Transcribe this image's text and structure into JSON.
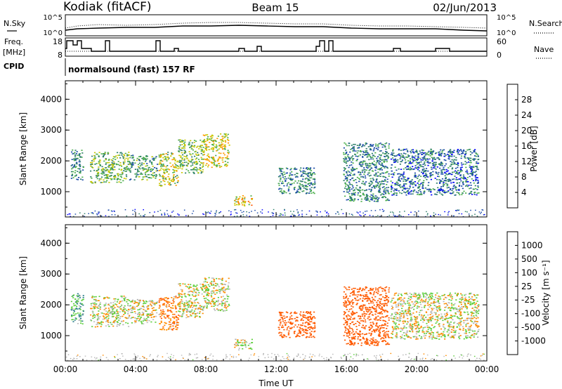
{
  "header": {
    "station": "Kodiak (fitACF)",
    "beam": "Beam 15",
    "date": "02/Jun/2013"
  },
  "panels": {
    "nsky": {
      "left_label": "N.Sky",
      "right_label": "N.Search",
      "tick_top": "10^5",
      "tick_bottom": "10^0"
    },
    "freq": {
      "left_label_1": "Freq.",
      "left_label_2": "[MHz]",
      "left_ticks": [
        "18",
        "8"
      ],
      "right_label": "Nave",
      "right_ticks": [
        "60",
        "0"
      ]
    },
    "cpid": {
      "label": "CPID",
      "mode": "normalsound (fast) 157 RF"
    }
  },
  "colors": {
    "power_scale": [
      "#0000ff",
      "#1a4aa8",
      "#2f7f6a",
      "#4caf4c",
      "#c8c800",
      "#ff9900",
      "#ff5500",
      "#ee0000"
    ],
    "velocity_scale": [
      "#2b3fb8",
      "#2e7f8c",
      "#2e8b57",
      "#5fcf3f",
      "#bfbfbf",
      "#b0b0b0",
      "#ff8c00",
      "#ff5a00",
      "#e00000"
    ]
  },
  "chart_data": [
    {
      "type": "heatmap",
      "quantity": "Power",
      "ylabel": "Slant Range [km]",
      "yticks": [
        "1000",
        "2000",
        "3000",
        "4000"
      ],
      "ylim": [
        180,
        4600
      ],
      "xlim": [
        0,
        24
      ],
      "colorbar": {
        "label": "Power [dB]",
        "ticks": [
          "4",
          "8",
          "12",
          "16",
          "20",
          "24",
          "28"
        ],
        "range": [
          0,
          32
        ]
      },
      "echo_regions": [
        {
          "t_start": 0.3,
          "t_end": 1.0,
          "r_min": 1400,
          "r_max": 2400,
          "power_db": 10
        },
        {
          "t_start": 1.4,
          "t_end": 3.6,
          "r_min": 1300,
          "r_max": 2300,
          "power_db": 14
        },
        {
          "t_start": 3.6,
          "t_end": 5.2,
          "r_min": 1400,
          "r_max": 2200,
          "power_db": 12
        },
        {
          "t_start": 5.3,
          "t_end": 6.4,
          "r_min": 1200,
          "r_max": 2300,
          "power_db": 16
        },
        {
          "t_start": 6.4,
          "t_end": 7.8,
          "r_min": 1600,
          "r_max": 2700,
          "power_db": 14
        },
        {
          "t_start": 7.8,
          "t_end": 9.3,
          "r_min": 1800,
          "r_max": 2900,
          "power_db": 18
        },
        {
          "t_start": 9.6,
          "t_end": 10.6,
          "r_min": 550,
          "r_max": 900,
          "power_db": 20
        },
        {
          "t_start": 12.1,
          "t_end": 14.2,
          "r_min": 950,
          "r_max": 1800,
          "power_db": 10
        },
        {
          "t_start": 15.8,
          "t_end": 18.4,
          "r_min": 700,
          "r_max": 2600,
          "power_db": 10
        },
        {
          "t_start": 18.5,
          "t_end": 23.5,
          "r_min": 900,
          "r_max": 2400,
          "power_db": 8
        }
      ]
    },
    {
      "type": "heatmap",
      "quantity": "Velocity",
      "ylabel": "Slant Range [km]",
      "xlabel": "Time UT",
      "yticks": [
        "1000",
        "2000",
        "3000",
        "4000"
      ],
      "ylim": [
        180,
        4600
      ],
      "xlim": [
        0,
        24
      ],
      "xticks": [
        "00:00",
        "04:00",
        "08:00",
        "12:00",
        "16:00",
        "20:00",
        "00:00"
      ],
      "colorbar": {
        "label": "Velocity [m s⁻¹]",
        "ticks": [
          "1000",
          "500",
          "100",
          "25",
          "-25",
          "-100",
          "-500",
          "-1000"
        ]
      },
      "echo_regions": [
        {
          "t_start": 0.3,
          "t_end": 1.0,
          "r_min": 1400,
          "r_max": 2400,
          "velocity": 100
        },
        {
          "t_start": 1.4,
          "t_end": 3.6,
          "r_min": 1300,
          "r_max": 2300,
          "velocity": 0
        },
        {
          "t_start": 3.6,
          "t_end": 5.2,
          "r_min": 1400,
          "r_max": 2200,
          "velocity": 0
        },
        {
          "t_start": 5.3,
          "t_end": 6.4,
          "r_min": 1200,
          "r_max": 2300,
          "velocity": -100
        },
        {
          "t_start": 6.4,
          "t_end": 7.8,
          "r_min": 1600,
          "r_max": 2700,
          "velocity": 0
        },
        {
          "t_start": 7.8,
          "t_end": 9.3,
          "r_min": 1800,
          "r_max": 2900,
          "velocity": 0
        },
        {
          "t_start": 9.6,
          "t_end": 10.6,
          "r_min": 550,
          "r_max": 900,
          "velocity": 0
        },
        {
          "t_start": 12.1,
          "t_end": 14.2,
          "r_min": 950,
          "r_max": 1800,
          "velocity": -300
        },
        {
          "t_start": 15.8,
          "t_end": 18.4,
          "r_min": 700,
          "r_max": 2600,
          "velocity": -200
        },
        {
          "t_start": 18.5,
          "t_end": 23.5,
          "r_min": 900,
          "r_max": 2400,
          "velocity": 0
        }
      ]
    }
  ]
}
